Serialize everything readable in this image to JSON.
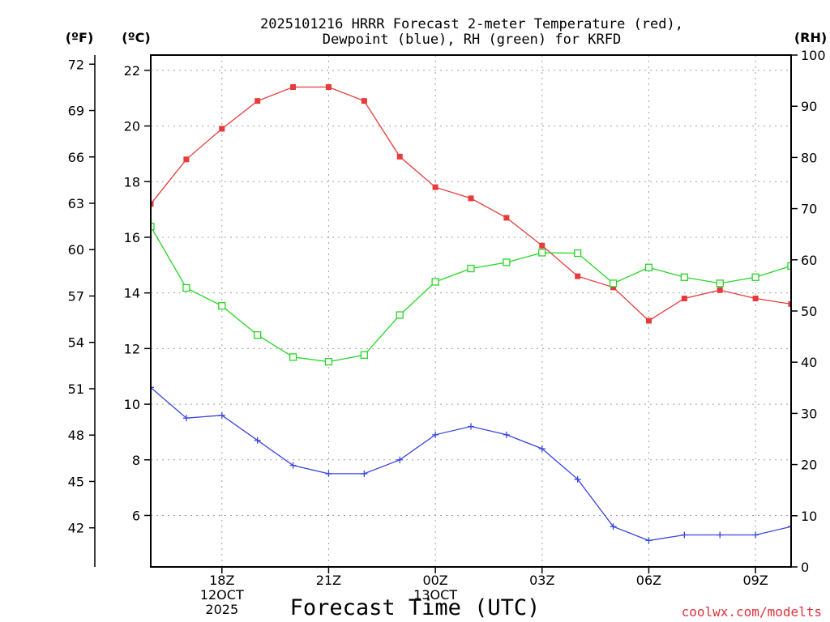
{
  "chart_data": {
    "type": "line",
    "title_lines": [
      "2025101216 HRRR Forecast 2-meter Temperature (red),",
      "Dewpoint (blue), RH (green) for KRFD"
    ],
    "xlabel": "Forecast Time (UTC)",
    "credit": "coolwx.com/modelts",
    "units": {
      "f": "(ºF)",
      "c": "(ºC)",
      "rh": "(RH)"
    },
    "x_hours": [
      16,
      17,
      18,
      19,
      20,
      21,
      22,
      23,
      24,
      25,
      26,
      27,
      28,
      29,
      30,
      31,
      32,
      33,
      34
    ],
    "xlim": [
      16,
      34
    ],
    "x_ticks": [
      {
        "hour": 18,
        "lines": [
          "18Z",
          "12OCT",
          "2025"
        ]
      },
      {
        "hour": 21,
        "lines": [
          "21Z"
        ]
      },
      {
        "hour": 24,
        "lines": [
          "00Z",
          "13OCT"
        ]
      },
      {
        "hour": 27,
        "lines": [
          "03Z"
        ]
      },
      {
        "hour": 30,
        "lines": [
          "06Z"
        ]
      },
      {
        "hour": 33,
        "lines": [
          "09Z"
        ]
      }
    ],
    "celsius_axis": {
      "range": [
        4.15,
        22.55
      ],
      "ticks": [
        6,
        8,
        10,
        12,
        14,
        16,
        18,
        20,
        22
      ]
    },
    "fahrenheit_axis": {
      "ticks": [
        42,
        45,
        48,
        51,
        54,
        57,
        60,
        63,
        66,
        69,
        72
      ]
    },
    "rh_axis": {
      "range": [
        0,
        100
      ],
      "ticks": [
        0,
        10,
        20,
        30,
        40,
        50,
        60,
        70,
        80,
        90,
        100
      ]
    },
    "series": [
      {
        "name": "Temperature",
        "units": "C",
        "color": "#e83a3a",
        "marker": "filled-square",
        "values": [
          17.2,
          18.8,
          19.9,
          20.9,
          21.4,
          21.4,
          20.9,
          18.9,
          17.8,
          17.4,
          16.7,
          15.7,
          14.6,
          14.2,
          13.0,
          13.8,
          14.1,
          13.8,
          13.6
        ]
      },
      {
        "name": "Dewpoint",
        "units": "C",
        "color": "#3a46e0",
        "marker": "plus",
        "values": [
          10.6,
          9.5,
          9.6,
          8.7,
          7.8,
          7.5,
          7.5,
          8.0,
          8.9,
          9.2,
          8.9,
          8.4,
          7.3,
          5.6,
          5.1,
          5.3,
          5.3,
          5.3,
          5.6
        ]
      },
      {
        "name": "RH",
        "units": "%",
        "color": "#26d526",
        "marker": "open-square",
        "values": [
          66.5,
          54.5,
          51.0,
          45.3,
          41.0,
          40.1,
          41.4,
          49.2,
          55.7,
          58.3,
          59.5,
          61.4,
          61.3,
          55.4,
          58.5,
          56.6,
          55.4,
          56.6,
          58.8
        ]
      }
    ]
  }
}
